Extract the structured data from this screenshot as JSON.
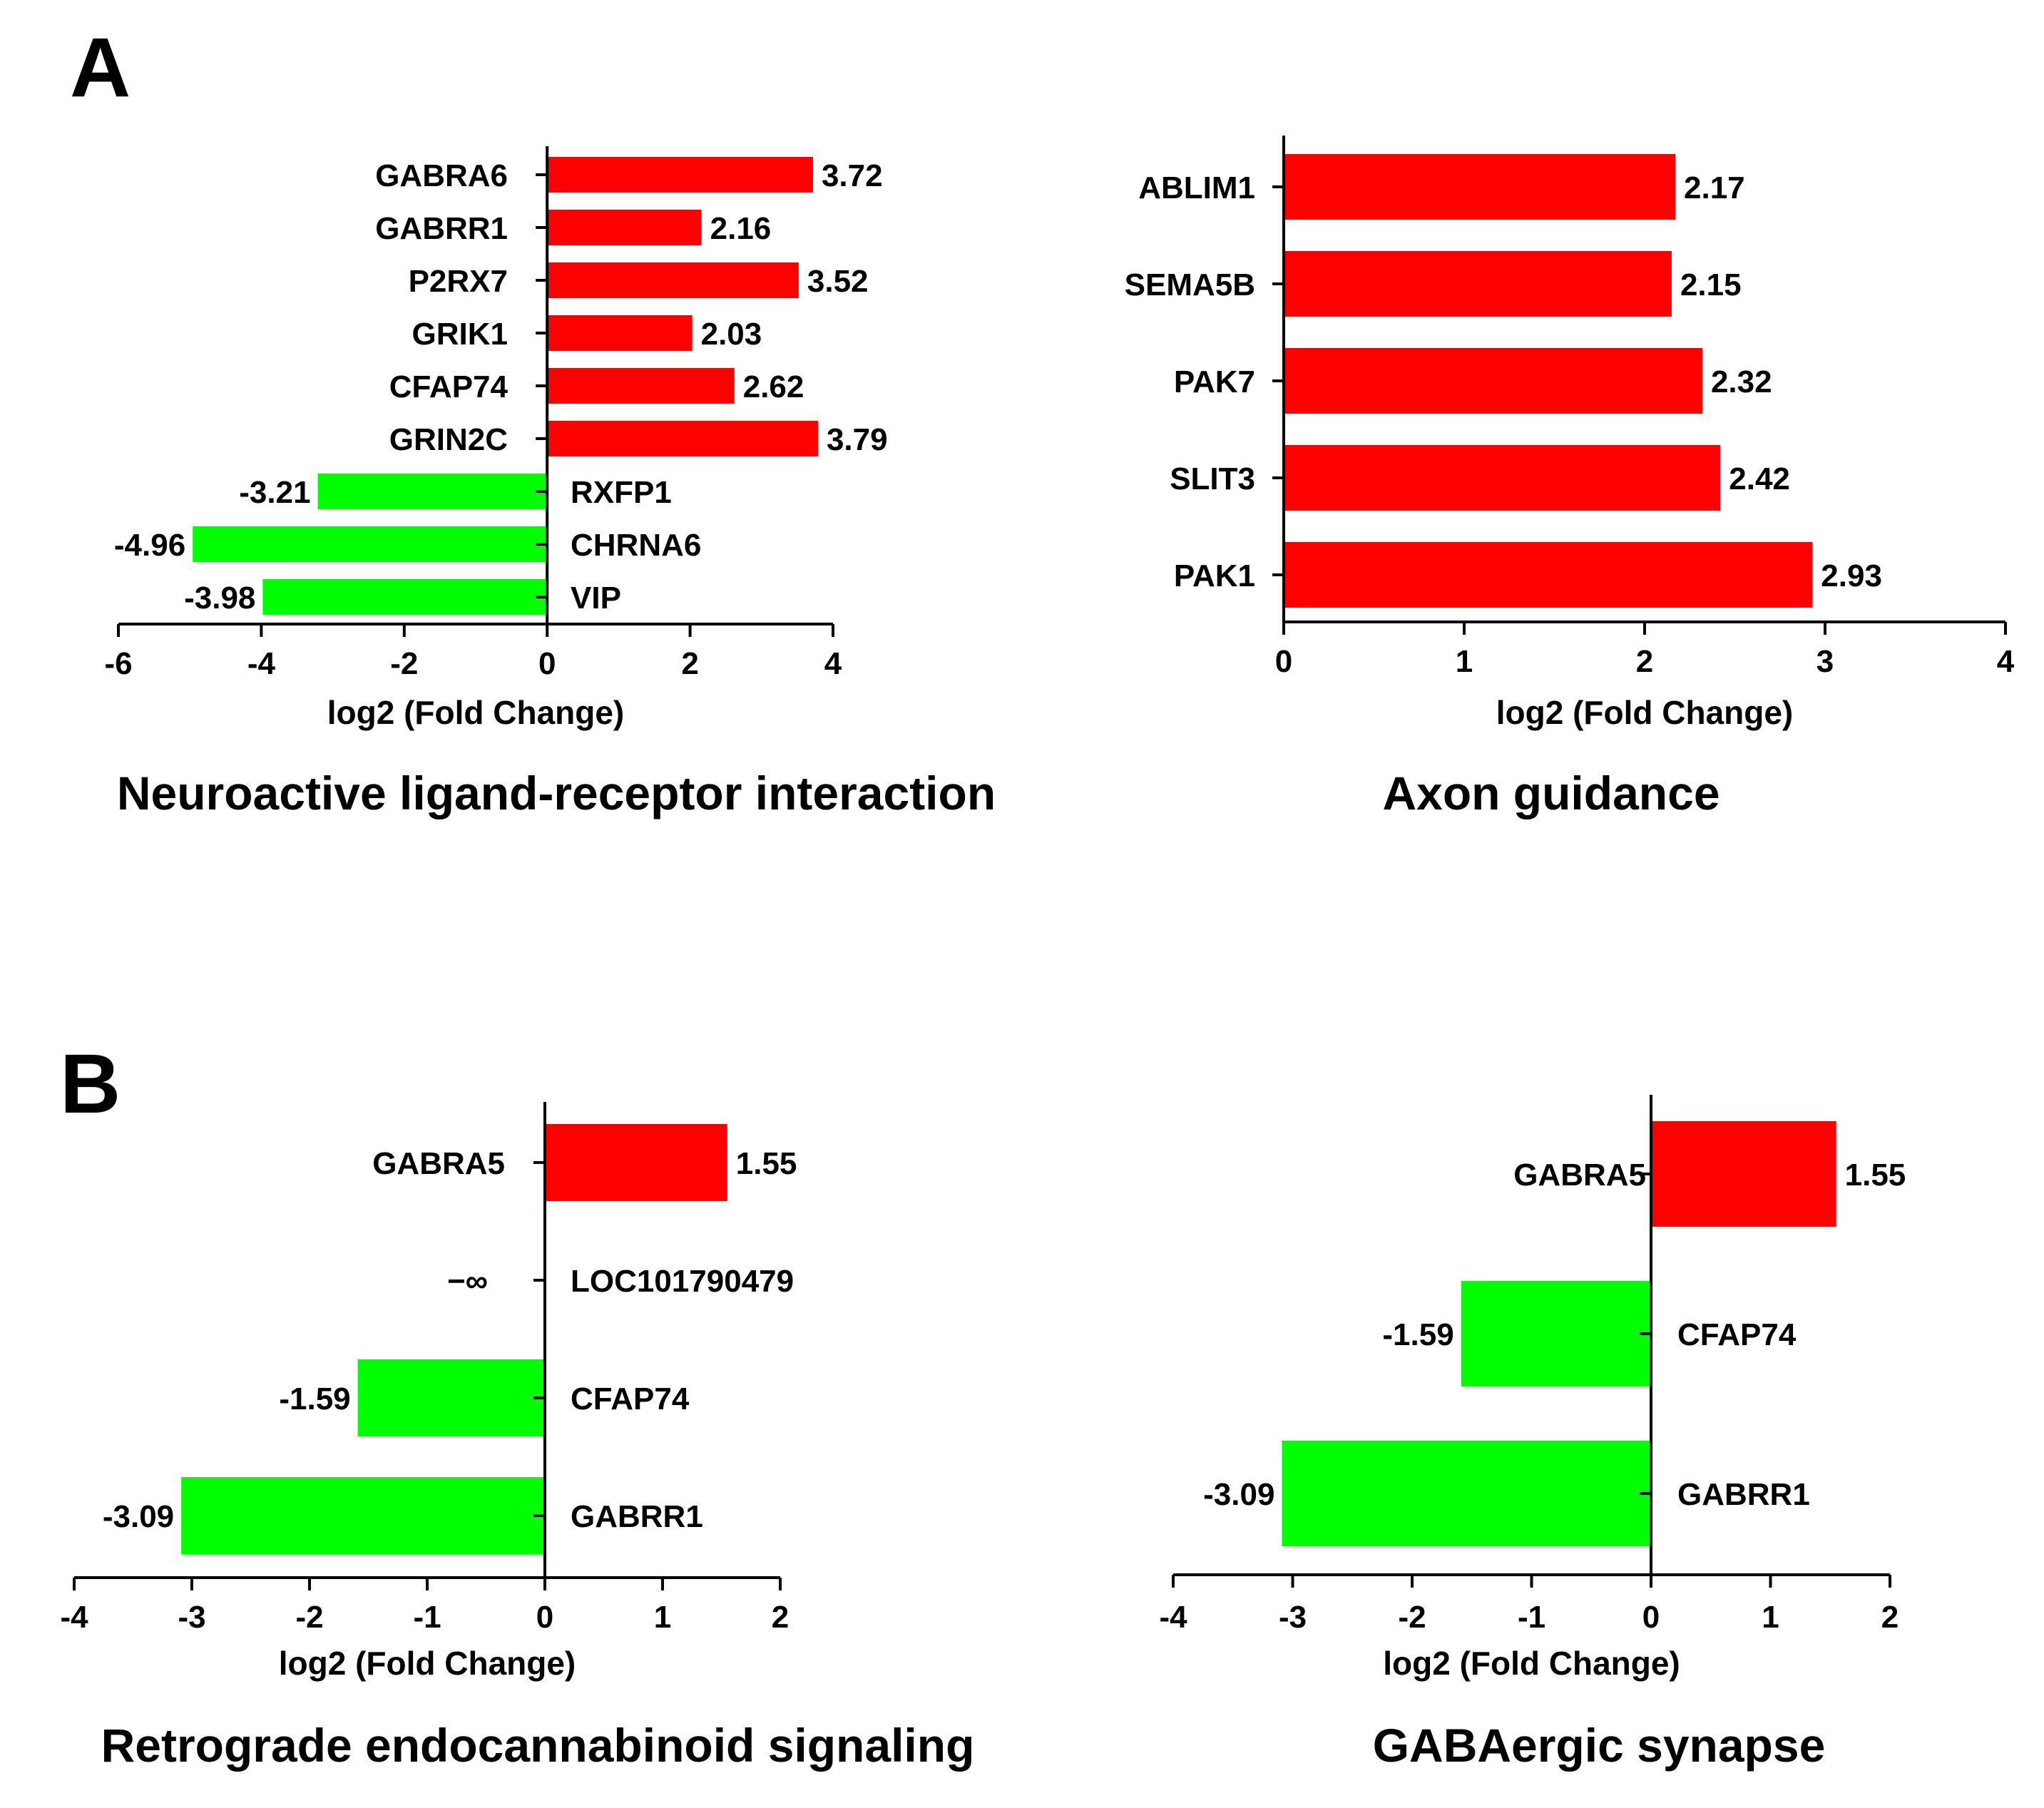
{
  "panels": {
    "A": {
      "label": "A"
    },
    "B": {
      "label": "B"
    }
  },
  "colors": {
    "positive": "#ff0000",
    "negative": "#00ff00",
    "axis": "#000000"
  },
  "chart_data": [
    {
      "id": "neuroactive",
      "panel": "A",
      "type": "bar",
      "orientation": "horizontal",
      "title": "Neuroactive ligand-receptor interaction",
      "xlabel": "log2 (Fold Change)",
      "ylabel": "",
      "xlim": [
        -6,
        4
      ],
      "xticks": [
        -6,
        -4,
        -2,
        0,
        2,
        4
      ],
      "xtick_labels": [
        "-6",
        "-4",
        "-2",
        "0",
        "2",
        "4"
      ],
      "categories": [
        "GABRA6",
        "GABRR1",
        "P2RX7",
        "GRIK1",
        "CFAP74",
        "GRIN2C",
        "RXFP1",
        "CHRNA6",
        "VIP"
      ],
      "values": [
        3.72,
        2.16,
        3.52,
        2.03,
        2.62,
        3.79,
        -3.21,
        -4.96,
        -3.98
      ],
      "value_labels": [
        "3.72",
        "2.16",
        "3.52",
        "2.03",
        "2.62",
        "3.79",
        "-3.21",
        "-4.96",
        "-3.98"
      ]
    },
    {
      "id": "axon",
      "panel": "A",
      "type": "bar",
      "orientation": "horizontal",
      "title": "Axon guidance",
      "xlabel": "log2 (Fold Change)",
      "ylabel": "",
      "xlim": [
        0,
        4
      ],
      "xticks": [
        0,
        1,
        2,
        3,
        4
      ],
      "xtick_labels": [
        "0",
        "1",
        "2",
        "3",
        "4"
      ],
      "categories": [
        "ABLIM1",
        "SEMA5B",
        "PAK7",
        "SLIT3",
        "PAK1"
      ],
      "values": [
        2.17,
        2.15,
        2.32,
        2.42,
        2.93
      ],
      "value_labels": [
        "2.17",
        "2.15",
        "2.32",
        "2.42",
        "2.93"
      ]
    },
    {
      "id": "retrograde",
      "panel": "B",
      "type": "bar",
      "orientation": "horizontal",
      "title": "Retrograde endocannabinoid signaling",
      "xlabel": "log2 (Fold Change)",
      "ylabel": "",
      "xlim": [
        -4,
        2
      ],
      "xticks": [
        -4,
        -3,
        -2,
        -1,
        0,
        1,
        2
      ],
      "xtick_labels": [
        "-4",
        "-3",
        "-2",
        "-1",
        "0",
        "1",
        "2"
      ],
      "categories": [
        "GABRA5",
        "LOC101790479",
        "CFAP74",
        "GABRR1"
      ],
      "values": [
        1.55,
        null,
        -1.59,
        -3.09
      ],
      "value_labels": [
        "1.55",
        "−∞",
        "-1.59",
        "-3.09"
      ]
    },
    {
      "id": "gabaergic",
      "panel": "B",
      "type": "bar",
      "orientation": "horizontal",
      "title": "GABAergic synapse",
      "xlabel": "log2 (Fold Change)",
      "ylabel": "",
      "xlim": [
        -4,
        2
      ],
      "xticks": [
        -4,
        -3,
        -2,
        -1,
        0,
        1,
        2
      ],
      "xtick_labels": [
        "-4",
        "-3",
        "-2",
        "-1",
        "0",
        "1",
        "2"
      ],
      "categories": [
        "GABRA5",
        "CFAP74",
        "GABRR1"
      ],
      "values": [
        1.55,
        -1.59,
        -3.09
      ],
      "value_labels": [
        "1.55",
        "-1.59",
        "-3.09"
      ]
    }
  ]
}
